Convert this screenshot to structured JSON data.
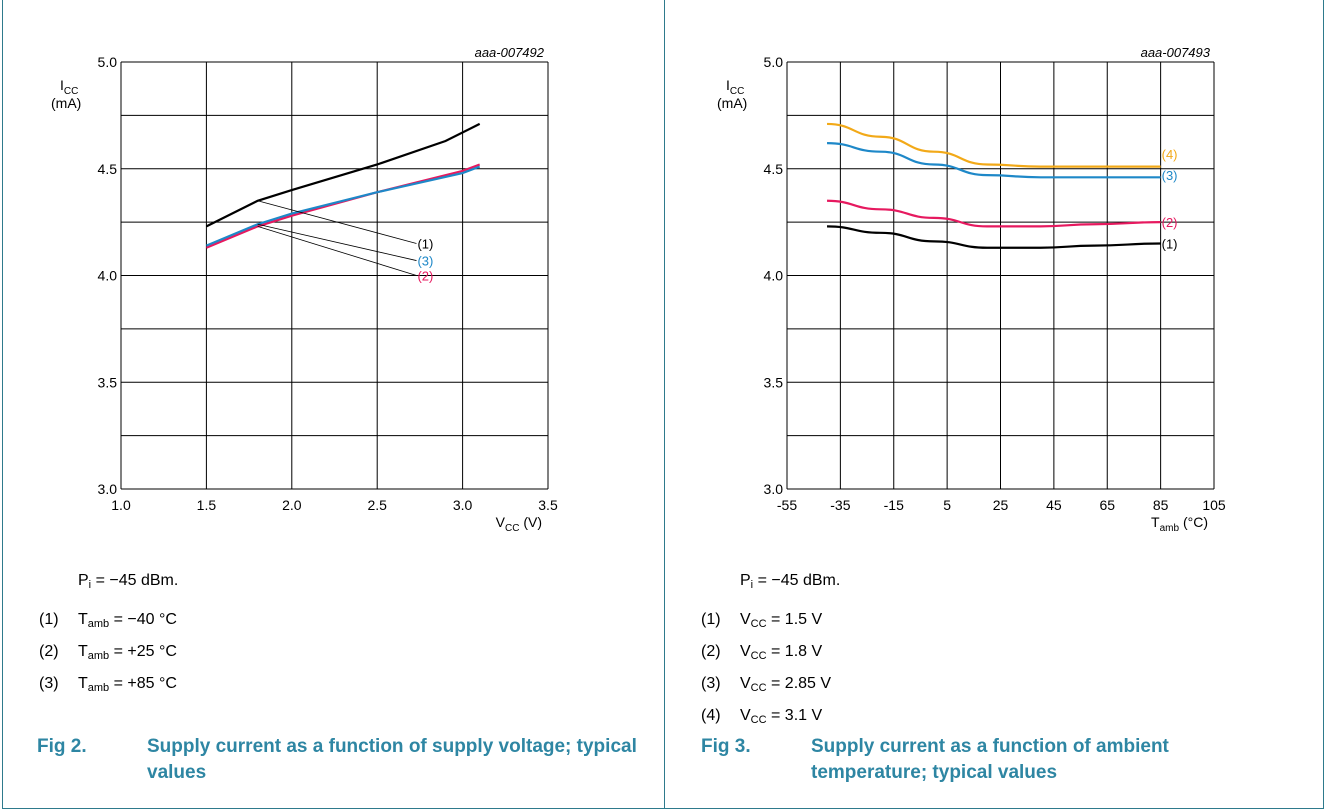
{
  "colors": {
    "border": "#2e7a8c",
    "caption": "#2e86a3",
    "black": "#000000",
    "pink": "#e6195f",
    "blue": "#1e88c8",
    "orange": "#f2a918"
  },
  "figures": [
    {
      "caption_num": "Fig 2.",
      "caption_text": "Supply current as a function of supply voltage; typical values",
      "notes": {
        "intro": {
          "text": "P",
          "sub": "i",
          "rest": " = −45 dBm."
        },
        "items": [
          {
            "num": "(1)",
            "text": "T",
            "sub": "amb",
            "rest": " = −40 °C"
          },
          {
            "num": "(2)",
            "text": "T",
            "sub": "amb",
            "rest": " = +25 °C"
          },
          {
            "num": "(3)",
            "text": "T",
            "sub": "amb",
            "rest": " = +85 °C"
          }
        ]
      }
    },
    {
      "caption_num": "Fig 3.",
      "caption_text": "Supply current as a function of ambient temperature; typical values",
      "notes": {
        "intro": {
          "text": "P",
          "sub": "i",
          "rest": " = −45 dBm."
        },
        "items": [
          {
            "num": "(1)",
            "text": "V",
            "sub": "CC",
            "rest": " = 1.5 V"
          },
          {
            "num": "(2)",
            "text": "V",
            "sub": "CC",
            "rest": " = 1.8 V"
          },
          {
            "num": "(3)",
            "text": "V",
            "sub": "CC",
            "rest": " = 2.85 V"
          },
          {
            "num": "(4)",
            "text": "V",
            "sub": "CC",
            "rest": " = 3.1 V"
          }
        ]
      }
    }
  ],
  "chart_data": [
    {
      "type": "line",
      "id_label": "aaa-007492",
      "ylabel": {
        "main": "I",
        "sub": "CC",
        "unit": "(mA)"
      },
      "xlabel": {
        "main": "V",
        "sub": "CC",
        "unit": " (V)"
      },
      "xlim": [
        1.0,
        3.5
      ],
      "ylim": [
        3.0,
        5.0
      ],
      "x_ticks": [
        "1.0",
        "1.5",
        "2.0",
        "2.5",
        "3.0",
        "3.5"
      ],
      "y_ticks": [
        "3.0",
        "3.5",
        "4.0",
        "4.5",
        "5.0"
      ],
      "x_grid": 0.5,
      "y_grid": 0.25,
      "series": [
        {
          "name": "(1)",
          "color": "#000000",
          "x": [
            1.5,
            1.8,
            2.0,
            2.5,
            2.9,
            3.1
          ],
          "y": [
            4.23,
            4.35,
            4.4,
            4.52,
            4.63,
            4.71
          ]
        },
        {
          "name": "(2)",
          "color": "#e6195f",
          "x": [
            1.5,
            1.8,
            2.0,
            2.5,
            3.0,
            3.1
          ],
          "y": [
            4.13,
            4.23,
            4.28,
            4.39,
            4.49,
            4.52
          ]
        },
        {
          "name": "(3)",
          "color": "#1e88c8",
          "x": [
            1.5,
            1.8,
            2.0,
            2.5,
            3.0,
            3.1
          ],
          "y": [
            4.14,
            4.24,
            4.29,
            4.39,
            4.48,
            4.51
          ]
        }
      ],
      "callouts": [
        {
          "label": "(1)",
          "color": "#000000",
          "from": [
            1.8,
            4.35
          ],
          "to": [
            2.73,
            4.15
          ]
        },
        {
          "label": "(3)",
          "color": "#1e88c8",
          "from": [
            1.8,
            4.24
          ],
          "to": [
            2.73,
            4.07
          ]
        },
        {
          "label": "(2)",
          "color": "#e6195f",
          "from": [
            1.8,
            4.23
          ],
          "to": [
            2.73,
            4.0
          ]
        }
      ]
    },
    {
      "type": "line",
      "id_label": "aaa-007493",
      "ylabel": {
        "main": "I",
        "sub": "CC",
        "unit": "(mA)"
      },
      "xlabel": {
        "main": "T",
        "sub": "amb",
        "unit": " (°C)"
      },
      "xlim": [
        -55,
        105
      ],
      "ylim": [
        3.0,
        5.0
      ],
      "x_ticks": [
        "-55",
        "-35",
        "-15",
        "5",
        "25",
        "45",
        "65",
        "85",
        "105"
      ],
      "y_ticks": [
        "3.0",
        "3.5",
        "4.0",
        "4.5",
        "5.0"
      ],
      "x_grid": 20,
      "y_grid": 0.25,
      "series": [
        {
          "name": "(1)",
          "color": "#000000",
          "x": [
            -40,
            -20,
            0,
            20,
            40,
            60,
            85
          ],
          "y": [
            4.23,
            4.2,
            4.16,
            4.13,
            4.13,
            4.14,
            4.15
          ]
        },
        {
          "name": "(2)",
          "color": "#e6195f",
          "x": [
            -40,
            -20,
            0,
            20,
            40,
            60,
            85
          ],
          "y": [
            4.35,
            4.31,
            4.27,
            4.23,
            4.23,
            4.24,
            4.25
          ]
        },
        {
          "name": "(3)",
          "color": "#1e88c8",
          "x": [
            -40,
            -20,
            0,
            20,
            40,
            60,
            85
          ],
          "y": [
            4.62,
            4.58,
            4.52,
            4.47,
            4.46,
            4.46,
            4.46
          ]
        },
        {
          "name": "(4)",
          "color": "#f2a918",
          "x": [
            -40,
            -20,
            0,
            20,
            40,
            60,
            85
          ],
          "y": [
            4.71,
            4.65,
            4.58,
            4.52,
            4.51,
            4.51,
            4.51
          ]
        }
      ],
      "end_labels": [
        {
          "label": "(4)",
          "color": "#f2a918",
          "y": 4.57
        },
        {
          "label": "(3)",
          "color": "#1e88c8",
          "y": 4.47
        },
        {
          "label": "(2)",
          "color": "#e6195f",
          "y": 4.25
        },
        {
          "label": "(1)",
          "color": "#000000",
          "y": 4.15
        }
      ]
    }
  ]
}
